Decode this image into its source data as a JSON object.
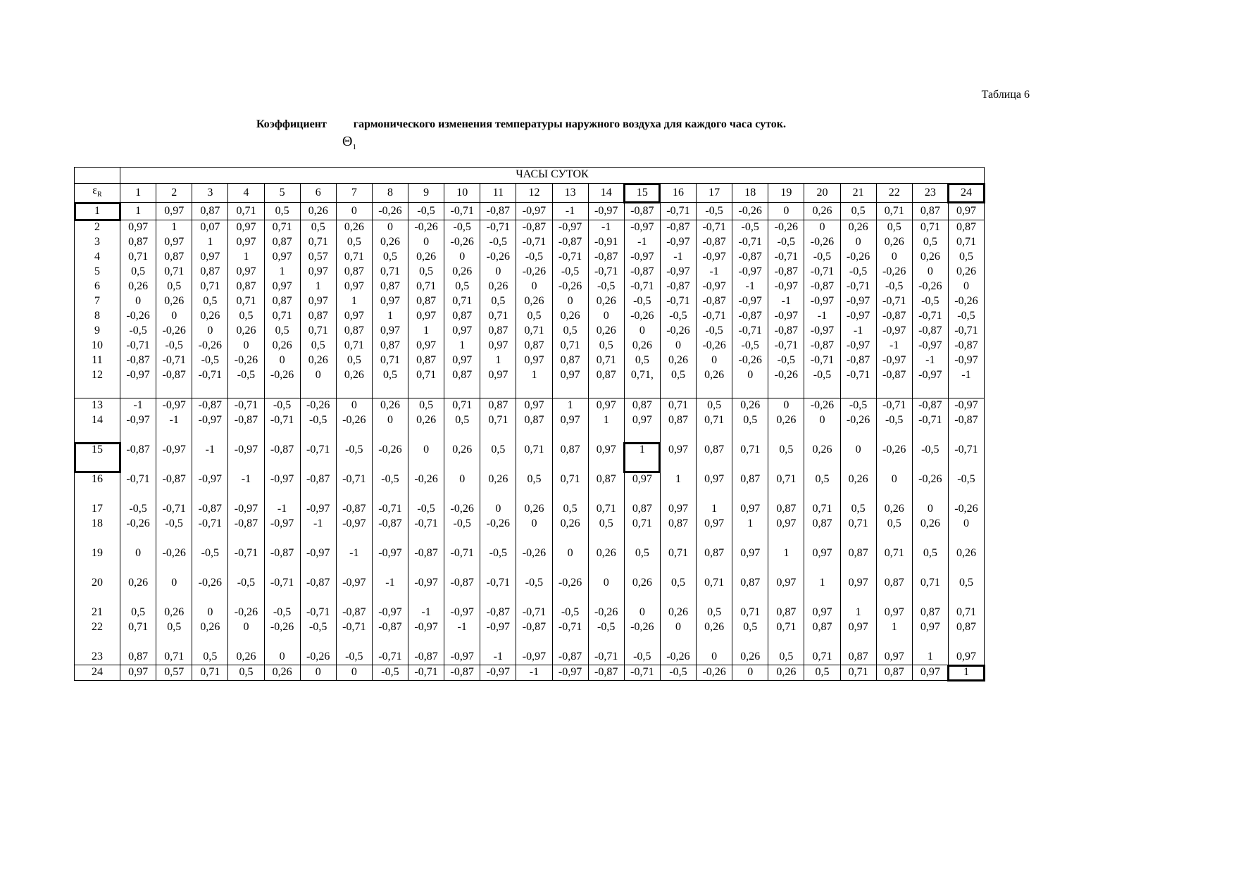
{
  "caption": "Таблица 6",
  "title": {
    "before": "Коэффициент",
    "after": "гармонического изменения температуры наружного воздуха для каждого часа суток.",
    "symbol": "Θ",
    "symbol_sub": "1"
  },
  "table": {
    "group_header": "ЧАСЫ СУТОК",
    "row_header": "ε",
    "row_header_sub": "R",
    "hours": [
      "1",
      "2",
      "3",
      "4",
      "5",
      "6",
      "7",
      "8",
      "9",
      "10",
      "11",
      "12",
      "13",
      "14",
      "15",
      "16",
      "17",
      "18",
      "19",
      "20",
      "21",
      "22",
      "23",
      "24"
    ],
    "rows": [
      {
        "label": "1",
        "values": [
          "1",
          "0,97",
          "0,87",
          "0,71",
          "0,5",
          "0,26",
          "0",
          "-0,26",
          "-0,5",
          "-0,71",
          "-0,87",
          "-0,97",
          "-1",
          "-0,97",
          "-0,87",
          "-0,71",
          "-0,5",
          "-0,26",
          "0",
          "0,26",
          "0,5",
          "0,71",
          "0,87",
          "0,97"
        ]
      },
      {
        "label": "2",
        "values": [
          "0,97",
          "1",
          "0,07",
          "0,97",
          "0,71",
          "0,5",
          "0,26",
          "0",
          "-0,26",
          "-0,5",
          "-0,71",
          "-0,87",
          "-0,97",
          "-1",
          "-0,97",
          "-0,87",
          "-0,71",
          "-0,5",
          "-0,26",
          "0",
          "0,26",
          "0,5",
          "0,71",
          "0,87"
        ]
      },
      {
        "label": "3",
        "values": [
          "0,87",
          "0,97",
          "1",
          "0,97",
          "0,87",
          "0,71",
          "0,5",
          "0,26",
          "0",
          "-0,26",
          "-0,5",
          "-0,71",
          "-0,87",
          "-0,91",
          "-1",
          "-0,97",
          "-0,87",
          "-0,71",
          "-0,5",
          "-0,26",
          "0",
          "0,26",
          "0,5",
          "0,71"
        ]
      },
      {
        "label": "4",
        "values": [
          "0,71",
          "0,87",
          "0,97",
          "1",
          "0,97",
          "0,57",
          "0,71",
          "0,5",
          "0,26",
          "0",
          "-0,26",
          "-0,5",
          "-0,71",
          "-0,87",
          "-0,97",
          "-1",
          "-0,97",
          "-0,87",
          "-0,71",
          "-0,5",
          "-0,26",
          "0",
          "0,26",
          "0,5"
        ]
      },
      {
        "label": "5",
        "values": [
          "0,5",
          "0,71",
          "0,87",
          "0,97",
          "1",
          "0,97",
          "0,87",
          "0,71",
          "0,5",
          "0,26",
          "0",
          "-0,26",
          "-0,5",
          "-0,71",
          "-0,87",
          "-0,97",
          "-1",
          "-0,97",
          "-0,87",
          "-0,71",
          "-0,5",
          "-0,26",
          "0",
          "0,26"
        ]
      },
      {
        "label": "6",
        "values": [
          "0,26",
          "0,5",
          "0,71",
          "0,87",
          "0,97",
          "1",
          "0,97",
          "0,87",
          "0,71",
          "0,5",
          "0,26",
          "0",
          "-0,26",
          "-0,5",
          "-0,71",
          "-0,87",
          "-0,97",
          "-1",
          "-0,97",
          "-0,87",
          "-0,71",
          "-0,5",
          "-0,26",
          "0"
        ]
      },
      {
        "label": "7",
        "values": [
          "0",
          "0,26",
          "0,5",
          "0,71",
          "0,87",
          "0,97",
          "1",
          "0,97",
          "0,87",
          "0,71",
          "0,5",
          "0,26",
          "0",
          "0,26",
          "-0,5",
          "-0,71",
          "-0,87",
          "-0,97",
          "-1",
          "-0,97",
          "-0,97",
          "-0,71",
          "-0,5",
          "-0,26"
        ]
      },
      {
        "label": "8",
        "values": [
          "-0,26",
          "0",
          "0,26",
          "0,5",
          "0,71",
          "0,87",
          "0,97",
          "1",
          "0,97",
          "0,87",
          "0,71",
          "0,5",
          "0,26",
          "0",
          "-0,26",
          "-0,5",
          "-0,71",
          "-0,87",
          "-0,97",
          "-1",
          "-0,97",
          "-0,87",
          "-0,71",
          "-0,5"
        ]
      },
      {
        "label": "9",
        "values": [
          "-0,5",
          "-0,26",
          "0",
          "0,26",
          "0,5",
          "0,71",
          "0,87",
          "0,97",
          "1",
          "0,97",
          "0,87",
          "0,71",
          "0,5",
          "0,26",
          "0",
          "-0,26",
          "-0,5",
          "-0,71",
          "-0,87",
          "-0,97",
          "-1",
          "-0,97",
          "-0,87",
          "-0,71"
        ]
      },
      {
        "label": "10",
        "values": [
          "-0,71",
          "-0,5",
          "-0,26",
          "0",
          "0,26",
          "0,5",
          "0,71",
          "0,87",
          "0,97",
          "1",
          "0,97",
          "0,87",
          "0,71",
          "0,5",
          "0,26",
          "0",
          "-0,26",
          "-0,5",
          "-0,71",
          "-0,87",
          "-0,97",
          "-1",
          "-0,97",
          "-0,87"
        ]
      },
      {
        "label": "11",
        "values": [
          "-0,87",
          "-0,71",
          "-0,5",
          "-0,26",
          "0",
          "0,26",
          "0,5",
          "0,71",
          "0,87",
          "0,97",
          "1",
          "0,97",
          "0,87",
          "0,71",
          "0,5",
          "0,26",
          "0",
          "-0,26",
          "-0,5",
          "-0,71",
          "-0,87",
          "-0,97",
          "-1",
          "-0,97"
        ]
      },
      {
        "label": "12",
        "values": [
          "-0,97",
          "-0,87",
          "-0,71",
          "-0,5",
          "-0,26",
          "0",
          "0,26",
          "0,5",
          "0,71",
          "0,87",
          "0,97",
          "1",
          "0,97",
          "0,87",
          "0,71,",
          "0,5",
          "0,26",
          "0",
          "-0,26",
          "-0,5",
          "-0,71",
          "-0,87",
          "-0,97",
          "-1"
        ]
      },
      {
        "label": "13",
        "values": [
          "-1",
          "-0,97",
          "-0,87",
          "-0,71",
          "-0,5",
          "-0,26",
          "0",
          "0,26",
          "0,5",
          "0,71",
          "0,87",
          "0,97",
          "1",
          "0,97",
          "0,87",
          "0,71",
          "0,5",
          "0,26",
          "0",
          "-0,26",
          "-0,5",
          "-0,71",
          "-0,87",
          "-0,97"
        ]
      },
      {
        "label": "14",
        "values": [
          "-0,97",
          "-1",
          "-0,97",
          "-0,87",
          "-0,71",
          "-0,5",
          "-0,26",
          "0",
          "0,26",
          "0,5",
          "0,71",
          "0,87",
          "0,97",
          "1",
          "0,97",
          "0,87",
          "0,71",
          "0,5",
          "0,26",
          "0",
          "-0,26",
          "-0,5",
          "-0,71",
          "-0,87"
        ]
      },
      {
        "label": "15",
        "values": [
          "-0,87",
          "-0,97",
          "-1",
          "-0,97",
          "-0,87",
          "-0,71",
          "-0,5",
          "-0,26",
          "0",
          "0,26",
          "0,5",
          "0,71",
          "0,87",
          "0,97",
          "1",
          "0,97",
          "0,87",
          "0,71",
          "0,5",
          "0,26",
          "0",
          "-0,26",
          "-0,5",
          "-0,71"
        ]
      },
      {
        "label": "16",
        "values": [
          "-0,71",
          "-0,87",
          "-0,97",
          "-1",
          "-0,97",
          "-0,87",
          "-0,71",
          "-0,5",
          "-0,26",
          "0",
          "0,26",
          "0,5",
          "0,71",
          "0,87",
          "0,97",
          "1",
          "0,97",
          "0,87",
          "0,71",
          "0,5",
          "0,26",
          "0",
          "-0,26",
          "-0,5"
        ]
      },
      {
        "label": "17",
        "values": [
          "-0,5",
          "-0,71",
          "-0,87",
          "-0,97",
          "-1",
          "-0,97",
          "-0,87",
          "-0,71",
          "-0,5",
          "-0,26",
          "0",
          "0,26",
          "0,5",
          "0,71",
          "0,87",
          "0,97",
          "1",
          "0,97",
          "0,87",
          "0,71",
          "0,5",
          "0,26",
          "0",
          "-0,26"
        ]
      },
      {
        "label": "18",
        "values": [
          "-0,26",
          "-0,5",
          "-0,71",
          "-0,87",
          "-0,97",
          "-1",
          "-0,97",
          "-0,87",
          "-0,71",
          "-0,5",
          "-0,26",
          "0",
          "0,26",
          "0,5",
          "0,71",
          "0,87",
          "0,97",
          "1",
          "0,97",
          "0,87",
          "0,71",
          "0,5",
          "0,26",
          "0"
        ]
      },
      {
        "label": "19",
        "values": [
          "0",
          "-0,26",
          "-0,5",
          "-0,71",
          "-0,87",
          "-0,97",
          "-1",
          "-0,97",
          "-0,87",
          "-0,71",
          "-0,5",
          "-0,26",
          "0",
          "0,26",
          "0,5",
          "0,71",
          "0,87",
          "0,97",
          "1",
          "0,97",
          "0,87",
          "0,71",
          "0,5",
          "0,26"
        ]
      },
      {
        "label": "20",
        "values": [
          "0,26",
          "0",
          "-0,26",
          "-0,5",
          "-0,71",
          "-0,87",
          "-0,97",
          "-1",
          "-0,97",
          "-0,87",
          "-0,71",
          "-0,5",
          "-0,26",
          "0",
          "0,26",
          "0,5",
          "0,71",
          "0,87",
          "0,97",
          "1",
          "0,97",
          "0,87",
          "0,71",
          "0,5"
        ]
      },
      {
        "label": "21",
        "values": [
          "0,5",
          "0,26",
          "0",
          "-0,26",
          "-0,5",
          "-0,71",
          "-0,87",
          "-0,97",
          "-1",
          "-0,97",
          "-0,87",
          "-0,71",
          "-0,5",
          "-0,26",
          "0",
          "0,26",
          "0,5",
          "0,71",
          "0,87",
          "0,97",
          "1",
          "0,97",
          "0,87",
          "0,71"
        ]
      },
      {
        "label": "22",
        "values": [
          "0,71",
          "0,5",
          "0,26",
          "0",
          "-0,26",
          "-0,5",
          "-0,71",
          "-0,87",
          "-0,97",
          "-1",
          "-0,97",
          "-0,87",
          "-0,71",
          "-0,5",
          "-0,26",
          "0",
          "0,26",
          "0,5",
          "0,71",
          "0,87",
          "0,97",
          "1",
          "0,97",
          "0,87"
        ]
      },
      {
        "label": "23",
        "values": [
          "0,87",
          "0,71",
          "0,5",
          "0,26",
          "0",
          "-0,26",
          "-0,5",
          "-0,71",
          "-0,87",
          "-0,97",
          "-1",
          "-0,97",
          "-0,87",
          "-0,71",
          "-0,5",
          "-0,26",
          "0",
          "0,26",
          "0,5",
          "0,71",
          "0,87",
          "0,97",
          "1",
          "0,97"
        ]
      },
      {
        "label": "24",
        "values": [
          "0,97",
          "0,57",
          "0,71",
          "0,5",
          "0,26",
          "0",
          "0",
          "-0,5",
          "-0,71",
          "-0,87",
          "-0,97",
          "-1",
          "-0,97",
          "-0,87",
          "-0,71",
          "-0,5",
          "-0,26",
          "0",
          "0,26",
          "0,5",
          "0,71",
          "0,87",
          "0,97",
          "1"
        ]
      }
    ]
  }
}
